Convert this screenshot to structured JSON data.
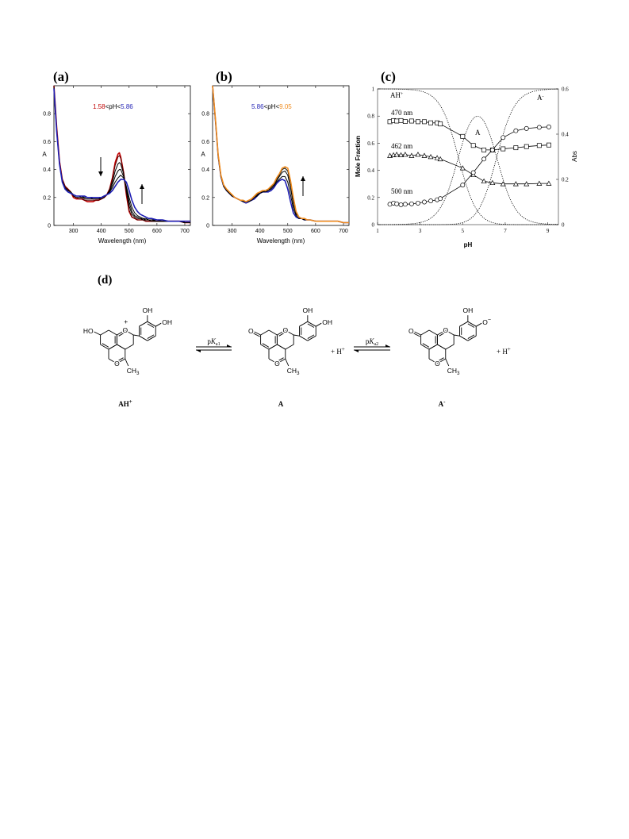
{
  "panels": {
    "a": "(a)",
    "b": "(b)",
    "c": "(c)",
    "d": "(d)"
  },
  "colors": {
    "red": "#c00000",
    "blue": "#1f1fb4",
    "orange": "#f08c1e",
    "dark_red": "#5a0000",
    "black": "#000000"
  },
  "chart_data": [
    {
      "type": "line",
      "panel": "(a)",
      "annotation": {
        "low": "1.58",
        "mid": "<pH<",
        "high": "5.86"
      },
      "xlabel": "Wavelength (nm)",
      "ylabel": "A",
      "xlim": [
        230,
        720
      ],
      "ylim": [
        0,
        1.0
      ],
      "x_ticks": [
        "300",
        "400",
        "500",
        "600",
        "700"
      ],
      "y_ticks": [
        "0",
        "0.2",
        "0.4",
        "0.6",
        "0.8"
      ],
      "arrows": [
        "down at ~400 nm",
        "up at ~550 nm"
      ],
      "x": [
        230,
        240,
        250,
        260,
        270,
        280,
        290,
        300,
        310,
        320,
        330,
        340,
        350,
        360,
        370,
        380,
        390,
        400,
        410,
        420,
        430,
        440,
        450,
        460,
        465,
        470,
        480,
        490,
        500,
        510,
        520,
        530,
        540,
        550,
        560,
        570,
        580,
        600,
        620,
        640,
        660,
        680,
        700,
        720
      ],
      "series": [
        {
          "color": "red",
          "values": [
            1.02,
            0.7,
            0.46,
            0.33,
            0.28,
            0.26,
            0.24,
            0.2,
            0.19,
            0.19,
            0.19,
            0.18,
            0.17,
            0.17,
            0.17,
            0.18,
            0.18,
            0.19,
            0.2,
            0.22,
            0.26,
            0.34,
            0.45,
            0.51,
            0.52,
            0.49,
            0.38,
            0.22,
            0.1,
            0.06,
            0.05,
            0.04,
            0.04,
            0.04,
            0.03,
            0.03,
            0.03,
            0.03,
            0.03,
            0.03,
            0.03,
            0.03,
            0.02,
            0.02
          ]
        },
        {
          "color": "dark_red",
          "values": [
            1.0,
            0.69,
            0.45,
            0.33,
            0.28,
            0.26,
            0.24,
            0.21,
            0.2,
            0.19,
            0.19,
            0.18,
            0.18,
            0.18,
            0.18,
            0.18,
            0.18,
            0.19,
            0.2,
            0.22,
            0.26,
            0.33,
            0.43,
            0.49,
            0.5,
            0.48,
            0.38,
            0.23,
            0.11,
            0.06,
            0.05,
            0.04,
            0.04,
            0.04,
            0.03,
            0.03,
            0.03,
            0.03,
            0.03,
            0.03,
            0.03,
            0.03,
            0.02,
            0.02
          ]
        },
        {
          "color": "black",
          "values": [
            0.99,
            0.68,
            0.45,
            0.32,
            0.27,
            0.25,
            0.24,
            0.21,
            0.2,
            0.2,
            0.2,
            0.19,
            0.19,
            0.19,
            0.19,
            0.19,
            0.19,
            0.19,
            0.2,
            0.22,
            0.25,
            0.31,
            0.39,
            0.44,
            0.45,
            0.44,
            0.37,
            0.25,
            0.14,
            0.08,
            0.06,
            0.05,
            0.05,
            0.04,
            0.04,
            0.04,
            0.03,
            0.03,
            0.03,
            0.03,
            0.03,
            0.03,
            0.02,
            0.02
          ]
        },
        {
          "color": "black",
          "values": [
            0.99,
            0.68,
            0.45,
            0.32,
            0.27,
            0.25,
            0.24,
            0.22,
            0.21,
            0.21,
            0.2,
            0.2,
            0.2,
            0.2,
            0.19,
            0.19,
            0.19,
            0.2,
            0.21,
            0.22,
            0.24,
            0.29,
            0.35,
            0.39,
            0.4,
            0.4,
            0.35,
            0.27,
            0.17,
            0.1,
            0.07,
            0.06,
            0.05,
            0.05,
            0.04,
            0.04,
            0.04,
            0.03,
            0.03,
            0.03,
            0.03,
            0.03,
            0.02,
            0.02
          ]
        },
        {
          "color": "black",
          "values": [
            0.98,
            0.67,
            0.44,
            0.32,
            0.27,
            0.25,
            0.24,
            0.22,
            0.21,
            0.21,
            0.21,
            0.2,
            0.2,
            0.2,
            0.2,
            0.2,
            0.2,
            0.2,
            0.21,
            0.22,
            0.24,
            0.27,
            0.31,
            0.34,
            0.35,
            0.36,
            0.34,
            0.28,
            0.2,
            0.13,
            0.09,
            0.07,
            0.06,
            0.05,
            0.05,
            0.04,
            0.04,
            0.04,
            0.03,
            0.03,
            0.03,
            0.03,
            0.02,
            0.02
          ]
        },
        {
          "color": "blue",
          "values": [
            0.98,
            0.67,
            0.44,
            0.31,
            0.26,
            0.24,
            0.23,
            0.22,
            0.21,
            0.21,
            0.21,
            0.21,
            0.2,
            0.2,
            0.2,
            0.2,
            0.2,
            0.2,
            0.21,
            0.22,
            0.23,
            0.25,
            0.28,
            0.31,
            0.32,
            0.33,
            0.33,
            0.31,
            0.25,
            0.18,
            0.13,
            0.1,
            0.08,
            0.07,
            0.06,
            0.05,
            0.05,
            0.04,
            0.04,
            0.03,
            0.03,
            0.03,
            0.03,
            0.03
          ]
        }
      ]
    },
    {
      "type": "line",
      "panel": "(b)",
      "annotation": {
        "low": "5.86",
        "mid": "<pH<",
        "high": "9.05"
      },
      "xlabel": "Wavelength (nm)",
      "ylabel": "A",
      "xlim": [
        230,
        720
      ],
      "ylim": [
        0,
        1.0
      ],
      "x_ticks": [
        "300",
        "400",
        "500",
        "600",
        "700"
      ],
      "y_ticks": [
        "0",
        "0.2",
        "0.4",
        "0.6",
        "0.8"
      ],
      "arrows": [
        "up at ~550 nm"
      ],
      "x": [
        230,
        240,
        250,
        260,
        270,
        280,
        290,
        300,
        310,
        320,
        330,
        340,
        350,
        360,
        370,
        380,
        390,
        400,
        410,
        420,
        430,
        440,
        450,
        460,
        470,
        480,
        490,
        500,
        510,
        520,
        530,
        540,
        550,
        560,
        570,
        580,
        600,
        620,
        640,
        660,
        680,
        700,
        720
      ],
      "series": [
        {
          "color": "blue",
          "values": [
            1.0,
            0.76,
            0.5,
            0.35,
            0.28,
            0.25,
            0.23,
            0.21,
            0.2,
            0.19,
            0.18,
            0.17,
            0.16,
            0.17,
            0.18,
            0.19,
            0.21,
            0.23,
            0.24,
            0.24,
            0.24,
            0.25,
            0.27,
            0.3,
            0.32,
            0.33,
            0.32,
            0.26,
            0.17,
            0.09,
            0.06,
            0.05,
            0.05,
            0.04,
            0.04,
            0.04,
            0.03,
            0.03,
            0.03,
            0.03,
            0.03,
            0.02,
            0.02
          ]
        },
        {
          "color": "black",
          "values": [
            1.0,
            0.76,
            0.5,
            0.35,
            0.28,
            0.25,
            0.23,
            0.21,
            0.2,
            0.19,
            0.18,
            0.17,
            0.17,
            0.17,
            0.18,
            0.2,
            0.21,
            0.23,
            0.24,
            0.24,
            0.25,
            0.26,
            0.28,
            0.31,
            0.33,
            0.35,
            0.35,
            0.31,
            0.22,
            0.12,
            0.07,
            0.05,
            0.05,
            0.04,
            0.04,
            0.04,
            0.03,
            0.03,
            0.03,
            0.03,
            0.03,
            0.02,
            0.02
          ]
        },
        {
          "color": "black",
          "values": [
            1.0,
            0.76,
            0.5,
            0.35,
            0.28,
            0.25,
            0.23,
            0.21,
            0.2,
            0.19,
            0.18,
            0.17,
            0.17,
            0.18,
            0.19,
            0.2,
            0.22,
            0.24,
            0.24,
            0.25,
            0.25,
            0.27,
            0.29,
            0.32,
            0.35,
            0.38,
            0.39,
            0.36,
            0.27,
            0.15,
            0.08,
            0.06,
            0.05,
            0.04,
            0.04,
            0.04,
            0.03,
            0.03,
            0.03,
            0.03,
            0.03,
            0.02,
            0.02
          ]
        },
        {
          "color": "black",
          "values": [
            1.0,
            0.76,
            0.5,
            0.35,
            0.28,
            0.25,
            0.23,
            0.21,
            0.2,
            0.19,
            0.18,
            0.18,
            0.17,
            0.18,
            0.19,
            0.21,
            0.22,
            0.24,
            0.25,
            0.25,
            0.26,
            0.27,
            0.3,
            0.33,
            0.36,
            0.4,
            0.41,
            0.39,
            0.3,
            0.18,
            0.09,
            0.06,
            0.05,
            0.04,
            0.04,
            0.04,
            0.03,
            0.03,
            0.03,
            0.03,
            0.03,
            0.02,
            0.02
          ]
        },
        {
          "color": "orange",
          "values": [
            1.0,
            0.77,
            0.51,
            0.36,
            0.29,
            0.26,
            0.24,
            0.22,
            0.2,
            0.19,
            0.18,
            0.18,
            0.17,
            0.18,
            0.19,
            0.21,
            0.23,
            0.24,
            0.25,
            0.25,
            0.26,
            0.28,
            0.3,
            0.34,
            0.37,
            0.41,
            0.42,
            0.41,
            0.32,
            0.2,
            0.1,
            0.06,
            0.05,
            0.05,
            0.04,
            0.04,
            0.03,
            0.03,
            0.03,
            0.03,
            0.03,
            0.02,
            0.02
          ]
        }
      ]
    },
    {
      "type": "line",
      "panel": "(c)",
      "xlabel": "pH",
      "ylabel": "Mole Fraction",
      "y2label": "Abs",
      "xlim": [
        1,
        9.5
      ],
      "ylim": [
        0,
        1
      ],
      "y2lim": [
        0,
        0.6
      ],
      "x_ticks": [
        "1",
        "3",
        "5",
        "7",
        "9"
      ],
      "y_ticks": [
        "0",
        "0.2",
        "0.4",
        "0.6",
        "0.8",
        "1"
      ],
      "y2_ticks": [
        "0",
        "0.2",
        "0.4",
        "0.6"
      ],
      "species_labels": [
        "AH+",
        "A",
        "A-"
      ],
      "species_text": {
        "ah_base": "AH",
        "ah_sup": "+",
        "a": "A",
        "a_minus_base": "A",
        "a_minus_sup": "-"
      },
      "pKa1": 4.8,
      "pKa2": 6.6,
      "series": [
        {
          "name": "470 nm",
          "marker": "square",
          "x": [
            1.58,
            1.75,
            1.9,
            2.1,
            2.3,
            2.6,
            2.9,
            3.2,
            3.5,
            3.8,
            3.95,
            5.0,
            5.5,
            6.0,
            6.4,
            6.9,
            7.5,
            8.0,
            8.6,
            9.05
          ],
          "y": [
            0.455,
            0.46,
            0.458,
            0.46,
            0.456,
            0.458,
            0.455,
            0.455,
            0.45,
            0.45,
            0.445,
            0.39,
            0.35,
            0.33,
            0.33,
            0.335,
            0.34,
            0.345,
            0.35,
            0.352
          ]
        },
        {
          "name": "462 nm",
          "marker": "triangle",
          "x": [
            1.58,
            1.75,
            1.9,
            2.1,
            2.3,
            2.6,
            2.9,
            3.2,
            3.5,
            3.8,
            3.95,
            5.0,
            5.5,
            6.0,
            6.4,
            6.9,
            7.5,
            8.0,
            8.6,
            9.05
          ],
          "y": [
            0.305,
            0.308,
            0.31,
            0.308,
            0.31,
            0.305,
            0.31,
            0.305,
            0.3,
            0.295,
            0.29,
            0.25,
            0.22,
            0.192,
            0.185,
            0.18,
            0.18,
            0.18,
            0.182,
            0.182
          ]
        },
        {
          "name": "500 nm",
          "marker": "circle",
          "x": [
            1.58,
            1.75,
            1.9,
            2.1,
            2.3,
            2.6,
            2.9,
            3.2,
            3.5,
            3.8,
            3.95,
            5.0,
            5.5,
            6.0,
            6.4,
            6.9,
            7.5,
            8.0,
            8.6,
            9.05
          ],
          "y": [
            0.09,
            0.095,
            0.092,
            0.088,
            0.09,
            0.092,
            0.095,
            0.1,
            0.105,
            0.11,
            0.115,
            0.175,
            0.23,
            0.29,
            0.33,
            0.385,
            0.415,
            0.425,
            0.43,
            0.432
          ]
        }
      ]
    }
  ],
  "scheme": {
    "species": {
      "ah_base": "AH",
      "ah_sup": "+",
      "a": "A",
      "a_minus_base": "A",
      "a_minus_sup": "-"
    },
    "arrow1": {
      "p": "p",
      "k": "K",
      "sub": "a1"
    },
    "arrow2": {
      "p": "p",
      "k": "K",
      "sub": "a2"
    },
    "proton": {
      "plus": "+ H",
      "sup": "+"
    },
    "atoms": {
      "ho": "HO",
      "o": "O",
      "oh": "OH",
      "ch3_c": "CH",
      "ch3_sub": "3",
      "o_minus": "O",
      "minus": "−",
      "plus": "+"
    }
  }
}
